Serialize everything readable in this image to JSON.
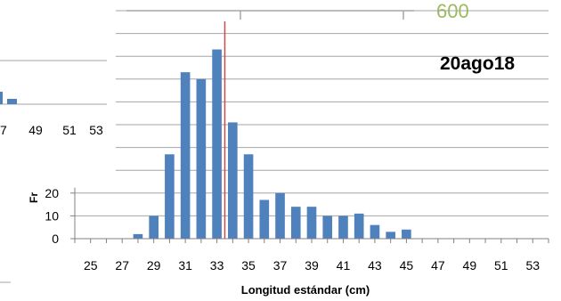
{
  "chart_data": {
    "type": "bar",
    "title": "20ago18",
    "corner_value": "600",
    "ylabel": "Fr",
    "xlabel": "Longitud estándar (cm)",
    "x_ticks": [
      "25",
      "27",
      "29",
      "31",
      "33",
      "35",
      "37",
      "39",
      "41",
      "43",
      "45",
      "47",
      "49",
      "51",
      "53"
    ],
    "y_ticks": [
      "0",
      "10",
      "20"
    ],
    "x": [
      25,
      26,
      27,
      28,
      29,
      30,
      31,
      32,
      33,
      34,
      35,
      36,
      37,
      38,
      39,
      40,
      41,
      42,
      43,
      44,
      45,
      46,
      47,
      48,
      49,
      50,
      51,
      52,
      53
    ],
    "values": [
      0,
      0,
      0,
      2,
      10,
      37,
      73,
      70,
      83,
      51,
      37,
      17,
      20,
      14,
      14,
      10,
      10,
      11,
      6,
      3,
      4,
      0,
      0,
      0,
      0,
      0,
      0,
      0,
      0
    ],
    "xlim": [
      24,
      54
    ],
    "ylim": [
      0,
      100
    ],
    "reference_line_x": 33.5,
    "bar_color": "#4f81bd",
    "reference_line_color": "#c0504d",
    "grid": true,
    "background_chart": {
      "x_ticks": [
        "7",
        "49",
        "51",
        "53"
      ],
      "bar_color": "#4f81bd"
    }
  }
}
